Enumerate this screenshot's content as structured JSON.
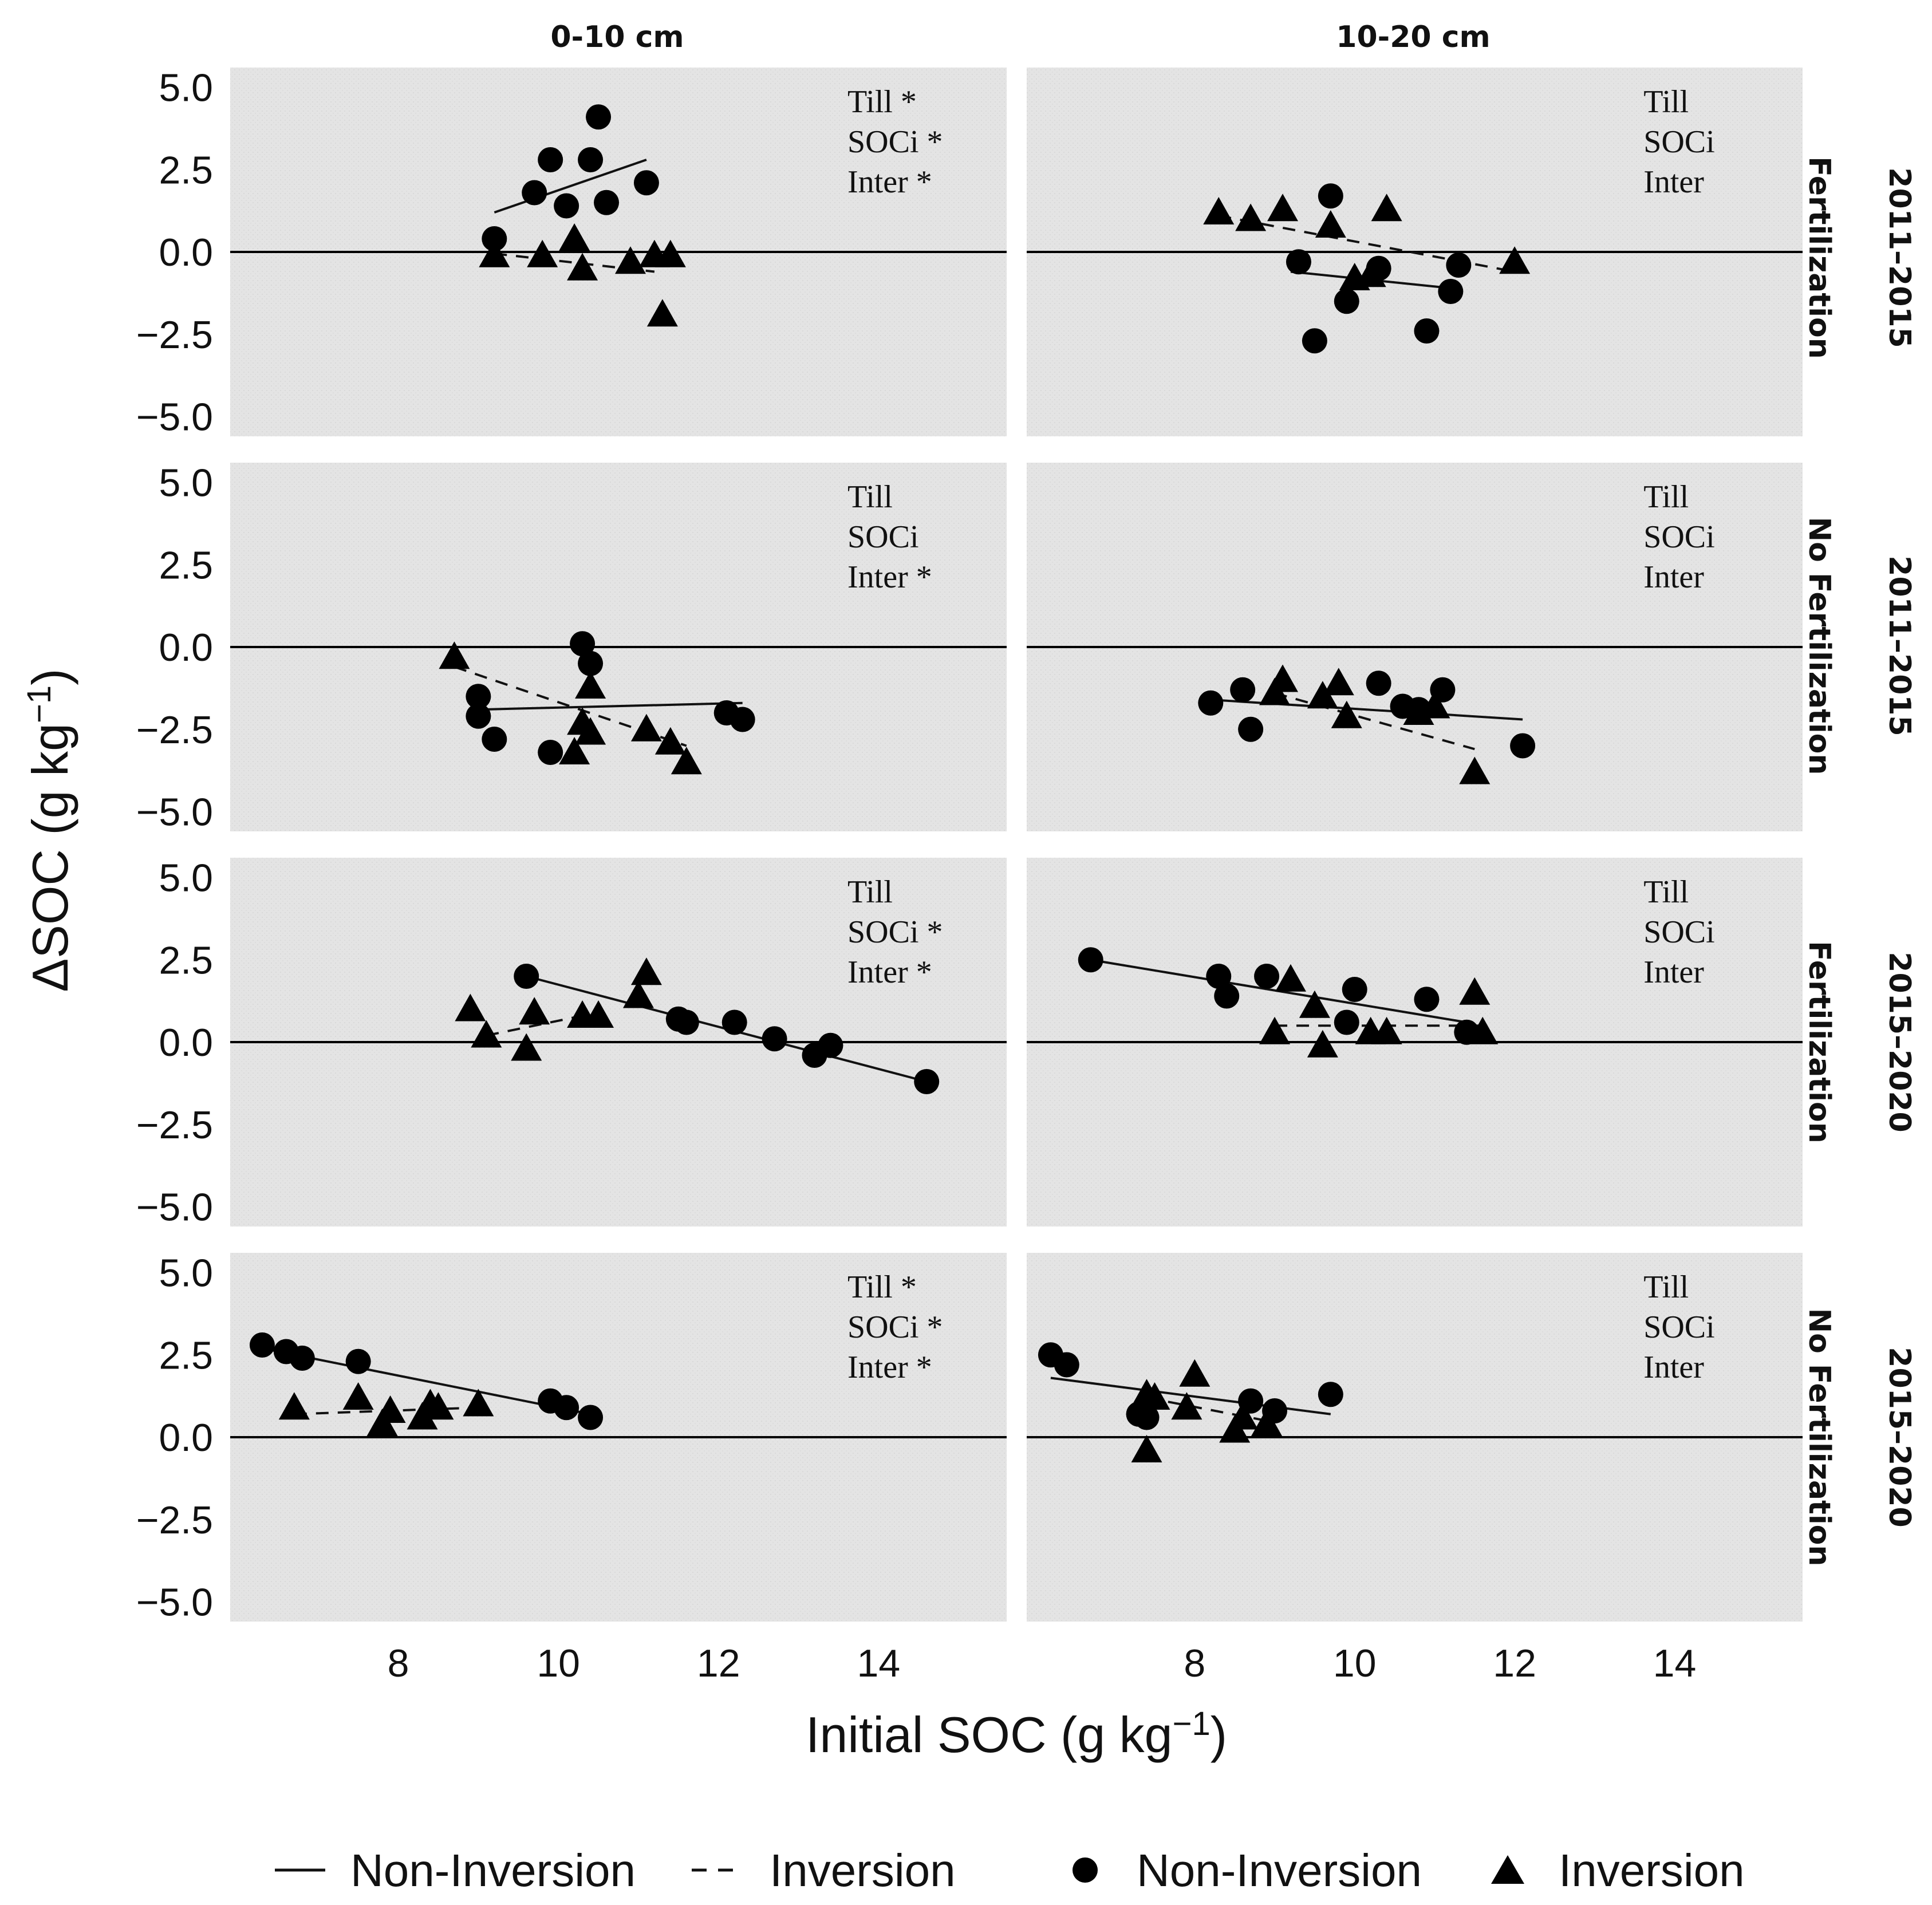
{
  "chart_data": {
    "type": "scatter",
    "xlabel": "Initial SOC (g kg",
    "xlabel_sup": "−1",
    "xlabel_end": ")",
    "ylabel": "ΔSOC (g kg",
    "ylabel_sup": "−1",
    "ylabel_end": ")",
    "xlim": [
      5.9,
      15.6
    ],
    "ylim": [
      -5.6,
      5.6
    ],
    "xticks": [
      8,
      10,
      12,
      14
    ],
    "xtick_labels": [
      "8",
      "10",
      "12",
      "14"
    ],
    "yticks": [
      5.0,
      2.5,
      0.0,
      -2.5,
      -5.0
    ],
    "ytick_labels": [
      "5.0",
      "2.5",
      "0.0",
      "−2.5",
      "−5.0"
    ],
    "col_labels": [
      "0-10 cm",
      "10-20 cm"
    ],
    "row_labels": [
      {
        "period": "2011–2015",
        "treatment": "Fertilization"
      },
      {
        "period": "2011–2015",
        "treatment": "No Fertilization"
      },
      {
        "period": "2015–2020",
        "treatment": "Fertilization"
      },
      {
        "period": "2015–2020",
        "treatment": "No Fertilization"
      }
    ],
    "legend": {
      "lines": [
        {
          "style": "solid",
          "label": "Non-Inversion"
        },
        {
          "style": "dashed",
          "label": "Inversion"
        }
      ],
      "points": [
        {
          "shape": "circle",
          "label": "Non-Inversion"
        },
        {
          "shape": "triangle",
          "label": "Inversion"
        }
      ]
    },
    "panels": [
      {
        "row": 0,
        "col": 0,
        "annotations": [
          "Till *",
          "SOCi *",
          "Inter *"
        ],
        "non_inversion_points": [
          [
            9.2,
            0.4
          ],
          [
            9.7,
            1.8
          ],
          [
            9.9,
            2.8
          ],
          [
            10.1,
            1.4
          ],
          [
            10.4,
            2.8
          ],
          [
            10.5,
            4.1
          ],
          [
            10.6,
            1.5
          ],
          [
            11.1,
            2.1
          ]
        ],
        "inversion_points": [
          [
            9.2,
            -0.1
          ],
          [
            9.8,
            -0.1
          ],
          [
            10.2,
            0.4
          ],
          [
            10.3,
            -0.5
          ],
          [
            10.9,
            -0.3
          ],
          [
            11.2,
            -0.1
          ],
          [
            11.4,
            -0.1
          ],
          [
            11.3,
            -1.9
          ]
        ],
        "non_inversion_fit": [
          [
            9.2,
            1.2
          ],
          [
            11.1,
            2.8
          ]
        ],
        "inversion_fit": [
          [
            9.2,
            -0.05
          ],
          [
            11.2,
            -0.6
          ]
        ]
      },
      {
        "row": 0,
        "col": 1,
        "annotations": [
          "Till",
          "SOCi",
          "Inter"
        ],
        "non_inversion_points": [
          [
            9.3,
            -0.3
          ],
          [
            9.5,
            -2.7
          ],
          [
            9.7,
            1.7
          ],
          [
            9.9,
            -1.5
          ],
          [
            10.3,
            -0.5
          ],
          [
            10.9,
            -2.4
          ],
          [
            11.2,
            -1.2
          ],
          [
            11.3,
            -0.4
          ]
        ],
        "inversion_points": [
          [
            8.3,
            1.2
          ],
          [
            8.7,
            1.0
          ],
          [
            9.1,
            1.3
          ],
          [
            9.7,
            0.8
          ],
          [
            10.0,
            -0.8
          ],
          [
            10.2,
            -0.7
          ],
          [
            10.4,
            1.3
          ],
          [
            12.0,
            -0.3
          ]
        ],
        "non_inversion_fit": [
          [
            9.2,
            -0.6
          ],
          [
            11.2,
            -1.1
          ]
        ],
        "inversion_fit": [
          [
            8.3,
            1.1
          ],
          [
            12.0,
            -0.6
          ]
        ]
      },
      {
        "row": 1,
        "col": 0,
        "annotations": [
          "Till",
          "SOCi",
          "Inter *"
        ],
        "non_inversion_points": [
          [
            9.0,
            -1.5
          ],
          [
            9.0,
            -2.1
          ],
          [
            9.2,
            -2.8
          ],
          [
            9.9,
            -3.2
          ],
          [
            10.3,
            0.1
          ],
          [
            10.4,
            -0.5
          ],
          [
            12.1,
            -2.0
          ],
          [
            12.3,
            -2.2
          ]
        ],
        "inversion_points": [
          [
            8.7,
            -0.3
          ],
          [
            10.2,
            -3.2
          ],
          [
            10.3,
            -2.3
          ],
          [
            10.4,
            -2.6
          ],
          [
            10.4,
            -1.2
          ],
          [
            11.1,
            -2.5
          ],
          [
            11.4,
            -2.9
          ],
          [
            11.6,
            -3.5
          ]
        ],
        "non_inversion_fit": [
          [
            9.0,
            -1.9
          ],
          [
            12.3,
            -1.7
          ]
        ],
        "inversion_fit": [
          [
            8.7,
            -0.6
          ],
          [
            11.6,
            -3.0
          ]
        ]
      },
      {
        "row": 1,
        "col": 1,
        "annotations": [
          "Till",
          "SOCi",
          "Inter"
        ],
        "non_inversion_points": [
          [
            8.2,
            -1.7
          ],
          [
            8.6,
            -1.3
          ],
          [
            8.7,
            -2.5
          ],
          [
            10.3,
            -1.1
          ],
          [
            10.6,
            -1.8
          ],
          [
            10.8,
            -1.9
          ],
          [
            11.1,
            -1.3
          ],
          [
            12.1,
            -3.0
          ]
        ],
        "inversion_points": [
          [
            9.0,
            -1.4
          ],
          [
            9.1,
            -1.0
          ],
          [
            9.6,
            -1.5
          ],
          [
            9.8,
            -1.1
          ],
          [
            9.9,
            -2.1
          ],
          [
            10.8,
            -2.0
          ],
          [
            11.0,
            -1.8
          ],
          [
            11.5,
            -3.8
          ]
        ],
        "non_inversion_fit": [
          [
            8.2,
            -1.6
          ],
          [
            12.1,
            -2.2
          ]
        ],
        "inversion_fit": [
          [
            9.0,
            -1.4
          ],
          [
            11.5,
            -3.1
          ]
        ]
      },
      {
        "row": 2,
        "col": 0,
        "annotations": [
          "Till",
          "SOCi *",
          "Inter *"
        ],
        "non_inversion_points": [
          [
            9.6,
            2.0
          ],
          [
            11.5,
            0.7
          ],
          [
            11.6,
            0.6
          ],
          [
            12.2,
            0.6
          ],
          [
            12.7,
            0.1
          ],
          [
            13.2,
            -0.4
          ],
          [
            13.4,
            -0.1
          ],
          [
            14.6,
            -1.2
          ]
        ],
        "inversion_points": [
          [
            8.9,
            1.0
          ],
          [
            9.1,
            0.2
          ],
          [
            9.6,
            -0.2
          ],
          [
            9.7,
            0.9
          ],
          [
            10.3,
            0.8
          ],
          [
            10.5,
            0.8
          ],
          [
            11.0,
            1.4
          ],
          [
            11.1,
            2.1
          ]
        ],
        "non_inversion_fit": [
          [
            9.6,
            2.0
          ],
          [
            14.6,
            -1.2
          ]
        ],
        "inversion_fit": [
          [
            9.1,
            0.2
          ],
          [
            10.5,
            0.9
          ]
        ]
      },
      {
        "row": 2,
        "col": 1,
        "annotations": [
          "Till",
          "SOCi",
          "Inter"
        ],
        "non_inversion_points": [
          [
            6.7,
            2.5
          ],
          [
            8.3,
            2.0
          ],
          [
            8.4,
            1.4
          ],
          [
            8.9,
            2.0
          ],
          [
            9.9,
            0.6
          ],
          [
            10.0,
            1.6
          ],
          [
            10.9,
            1.3
          ],
          [
            11.4,
            0.3
          ]
        ],
        "inversion_points": [
          [
            9.0,
            0.3
          ],
          [
            9.2,
            1.9
          ],
          [
            9.5,
            1.1
          ],
          [
            9.6,
            -0.1
          ],
          [
            10.2,
            0.3
          ],
          [
            10.4,
            0.3
          ],
          [
            11.5,
            1.5
          ],
          [
            11.6,
            0.3
          ]
        ],
        "non_inversion_fit": [
          [
            6.7,
            2.5
          ],
          [
            11.4,
            0.6
          ]
        ],
        "inversion_fit": [
          [
            9.0,
            0.5
          ],
          [
            11.6,
            0.5
          ]
        ]
      },
      {
        "row": 3,
        "col": 0,
        "annotations": [
          "Till *",
          "SOCi *",
          "Inter *"
        ],
        "non_inversion_points": [
          [
            6.3,
            2.8
          ],
          [
            6.6,
            2.6
          ],
          [
            6.8,
            2.4
          ],
          [
            7.5,
            2.3
          ],
          [
            9.9,
            1.1
          ],
          [
            10.1,
            0.9
          ],
          [
            10.4,
            0.6
          ]
        ],
        "inversion_points": [
          [
            6.7,
            0.9
          ],
          [
            7.5,
            1.2
          ],
          [
            7.8,
            0.4
          ],
          [
            7.9,
            0.8
          ],
          [
            8.3,
            0.6
          ],
          [
            8.4,
            1.0
          ],
          [
            8.5,
            0.9
          ],
          [
            9.0,
            1.0
          ]
        ],
        "non_inversion_fit": [
          [
            6.3,
            2.7
          ],
          [
            10.4,
            0.7
          ]
        ],
        "inversion_fit": [
          [
            6.7,
            0.7
          ],
          [
            9.0,
            0.9
          ]
        ]
      },
      {
        "row": 3,
        "col": 1,
        "annotations": [
          "Till",
          "SOCi",
          "Inter"
        ],
        "non_inversion_points": [
          [
            6.2,
            2.5
          ],
          [
            6.4,
            2.2
          ],
          [
            7.3,
            0.7
          ],
          [
            7.4,
            0.6
          ],
          [
            8.7,
            1.1
          ],
          [
            9.0,
            0.8
          ],
          [
            9.7,
            1.3
          ]
        ],
        "inversion_points": [
          [
            7.4,
            -0.4
          ],
          [
            7.4,
            1.3
          ],
          [
            7.5,
            1.2
          ],
          [
            7.9,
            0.9
          ],
          [
            8.0,
            1.9
          ],
          [
            8.5,
            0.2
          ],
          [
            8.6,
            0.6
          ],
          [
            8.9,
            0.4
          ]
        ],
        "non_inversion_fit": [
          [
            6.2,
            1.8
          ],
          [
            9.7,
            0.7
          ]
        ],
        "inversion_fit": [
          [
            7.4,
            1.2
          ],
          [
            8.9,
            0.5
          ]
        ]
      }
    ]
  }
}
